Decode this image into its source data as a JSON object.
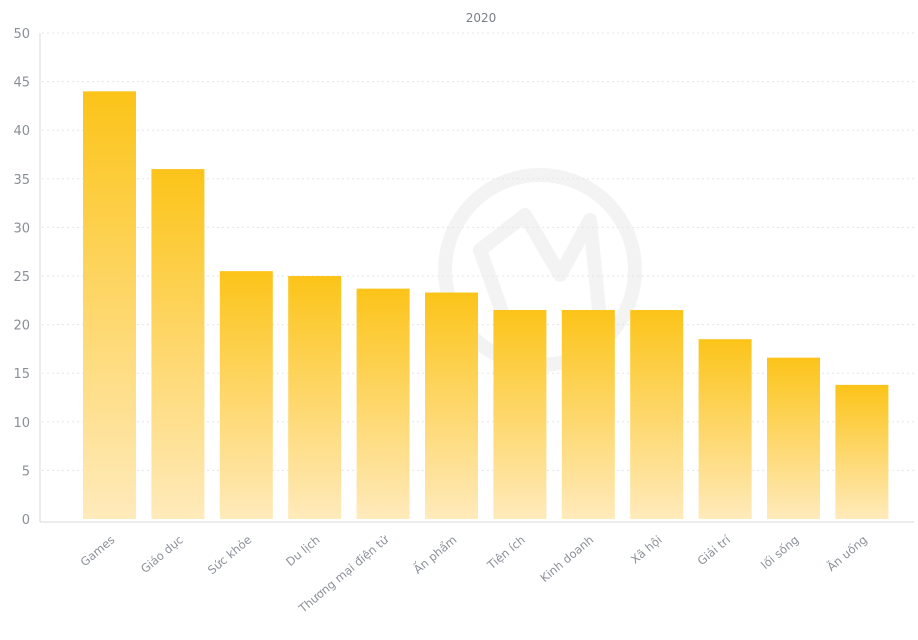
{
  "chart_data": {
    "type": "bar",
    "title": "2020",
    "xlabel": "",
    "ylabel": "",
    "categories": [
      "Games",
      "Giáo dục",
      "Sức khỏe",
      "Du lịch",
      "Thương mại điện tử",
      "Ấn phẩm",
      "Tiện ích",
      "Kinh doanh",
      "Xã hội",
      "Giải trí",
      "lối sống",
      "Ăn uống"
    ],
    "values": [
      44,
      36,
      25.5,
      25,
      23.7,
      23.3,
      21.5,
      21.5,
      21.5,
      18.5,
      16.6,
      13.8
    ],
    "ylim": [
      0,
      50
    ],
    "yticks": [
      0,
      5,
      10,
      15,
      20,
      25,
      30,
      35,
      40,
      45,
      50
    ],
    "grid": true,
    "legend": "none",
    "colors": {
      "bar_top": "#fcc419",
      "bar_bottom": "#ffeabb",
      "grid": "#e3e6ea",
      "axis": "#d4d8de",
      "text": "#8a8f98",
      "watermark": "#f1f1f1"
    }
  }
}
